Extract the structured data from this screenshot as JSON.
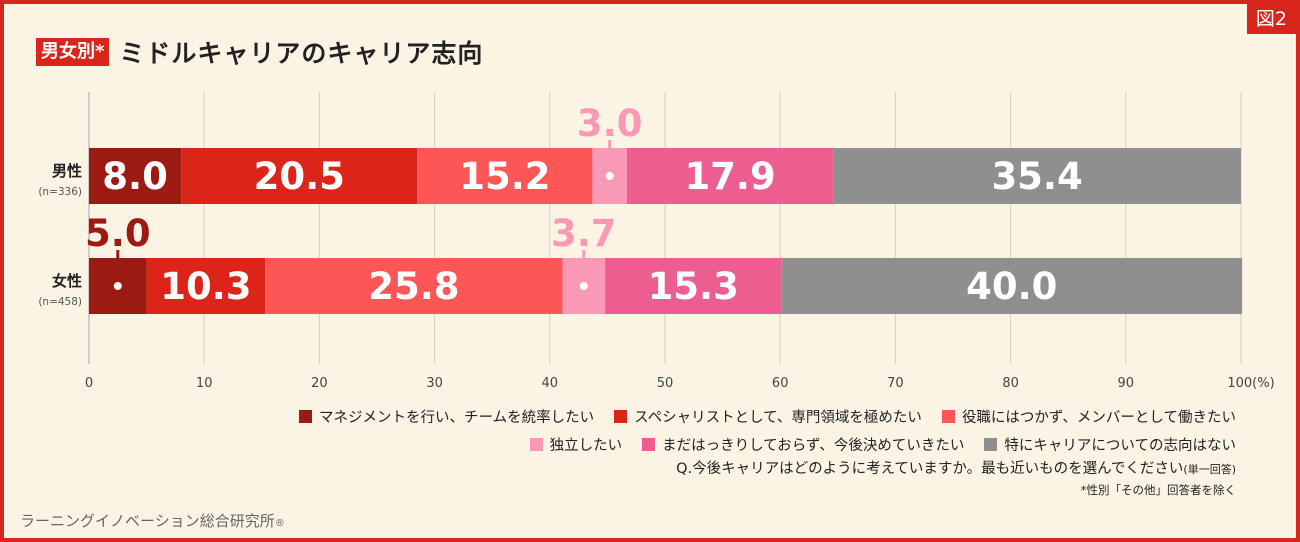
{
  "figure_tag": "図2",
  "title": {
    "badge": "男女別*",
    "text": "ミドルキャリアのキャリア志向"
  },
  "chart_data": {
    "type": "bar",
    "orientation": "horizontal",
    "stacked": true,
    "xlim": [
      0,
      100
    ],
    "x_ticks": [
      "0",
      "10",
      "20",
      "30",
      "40",
      "50",
      "60",
      "70",
      "80",
      "90",
      "100(%)"
    ],
    "categories": [
      {
        "label": "男性",
        "sub": "(n=336)"
      },
      {
        "label": "女性",
        "sub": "(n=458)"
      }
    ],
    "series": [
      {
        "name": "マネジメントを行い、チームを統率したい",
        "color": "#9b1a12",
        "values": [
          8.0,
          5.0
        ]
      },
      {
        "name": "スペシャリストとして、専門領域を極めたい",
        "color": "#dd2418",
        "values": [
          20.5,
          10.3
        ]
      },
      {
        "name": "役職にはつかず、メンバーとして働きたい",
        "color": "#fd5656",
        "values": [
          15.2,
          25.8
        ]
      },
      {
        "name": "独立したい",
        "color": "#f999b6",
        "values": [
          3.0,
          3.7
        ]
      },
      {
        "name": "まだはっきりしておらず、今後決めていきたい",
        "color": "#ec5e90",
        "values": [
          17.9,
          15.3
        ]
      },
      {
        "name": "特にキャリアについての志向はない",
        "color": "#8f8f8f",
        "values": [
          35.4,
          40.0
        ]
      }
    ],
    "value_labels": [
      [
        "8.0",
        "20.5",
        "15.2",
        "3.0",
        "17.9",
        "35.4"
      ],
      [
        "5.0",
        "10.3",
        "25.8",
        "3.7",
        "15.3",
        "40.0"
      ]
    ],
    "grid": true,
    "legend_position": "bottom-right"
  },
  "notes": {
    "question": "Q.今後キャリアはどのように考えていますか。最も近いものを選んでください",
    "question_suffix": "(単一回答)",
    "sub": "*性別「その他」回答者を除く"
  },
  "source": {
    "text": "ラーニングイノベーション総合研究所",
    "mark": "®"
  }
}
